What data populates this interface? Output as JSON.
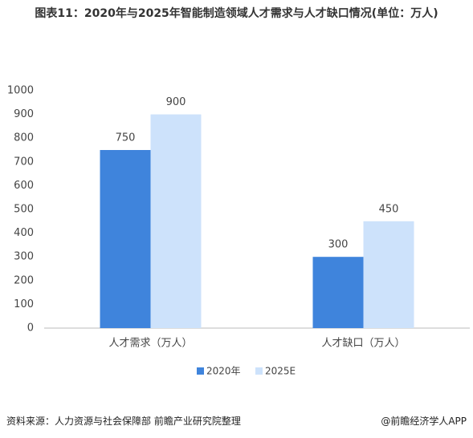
{
  "chart_data": {
    "type": "bar",
    "title": "图表11：2020年与2025年智能制造领域人才需求与人才缺口情况(单位：万人)",
    "categories": [
      "人才需求（万人）",
      "人才缺口（万人）"
    ],
    "series": [
      {
        "name": "2020年",
        "color": "#3f84dc",
        "values": [
          750,
          300
        ]
      },
      {
        "name": "2025E",
        "color": "#cde2fb",
        "values": [
          900,
          450
        ]
      }
    ],
    "ylim": [
      0,
      1000
    ],
    "yticks": [
      0,
      100,
      200,
      300,
      400,
      500,
      600,
      700,
      800,
      900,
      1000
    ],
    "grid": false,
    "legend": "bottom",
    "source": "资料来源：人力资源与社会保障部 前瞻产业研究院整理",
    "credit": "@前瞻经济学人APP"
  }
}
